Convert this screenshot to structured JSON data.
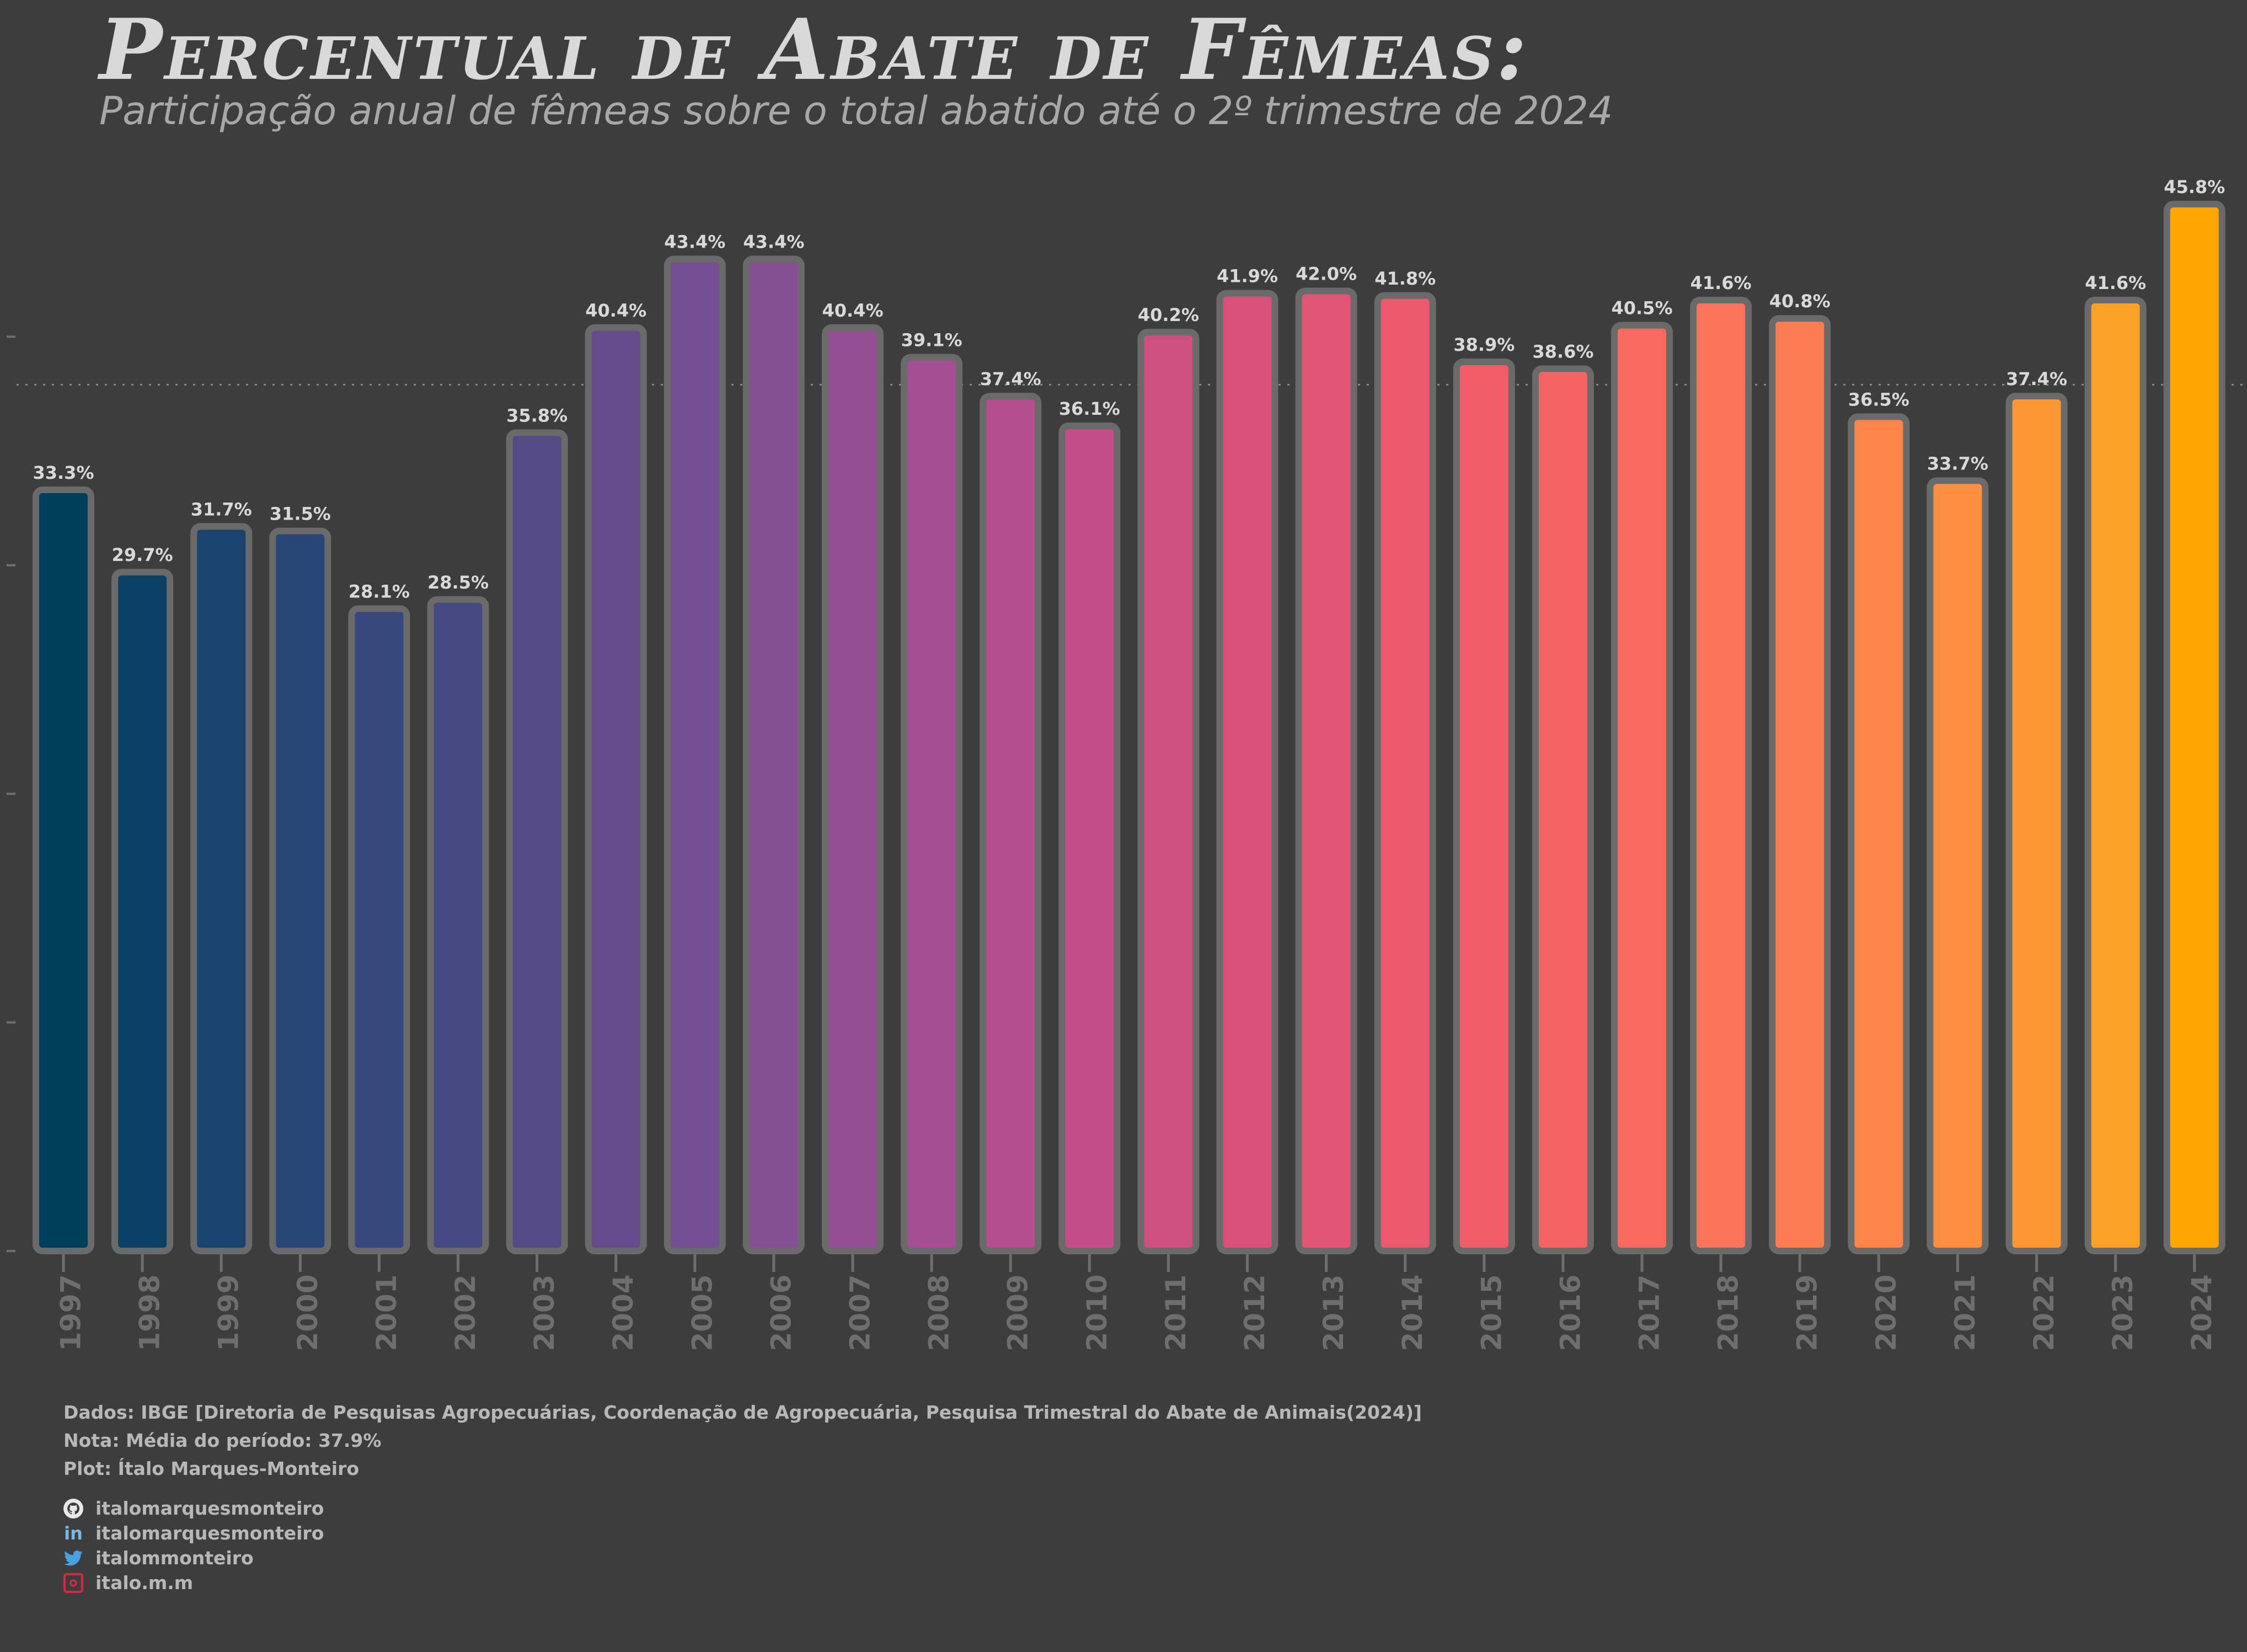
{
  "title": "Percentual de Abate de Fêmeas:",
  "subtitle": "Participação anual de fêmeas sobre o total abatido até o 2º trimestre de 2024",
  "chart_data": {
    "type": "bar",
    "title": "Percentual de Abate de Fêmeas:",
    "subtitle": "Participação anual de fêmeas sobre o total abatido até o 2º trimestre de 2024",
    "categories": [
      "1997",
      "1998",
      "1999",
      "2000",
      "2001",
      "2002",
      "2003",
      "2004",
      "2005",
      "2006",
      "2007",
      "2008",
      "2009",
      "2010",
      "2011",
      "2012",
      "2013",
      "2014",
      "2015",
      "2016",
      "2017",
      "2018",
      "2019",
      "2020",
      "2021",
      "2022",
      "2023",
      "2024"
    ],
    "values": [
      33.3,
      29.7,
      31.7,
      31.5,
      28.1,
      28.5,
      35.8,
      40.4,
      43.4,
      43.4,
      40.4,
      39.1,
      37.4,
      36.1,
      40.2,
      41.9,
      42.0,
      41.8,
      38.9,
      38.6,
      40.5,
      41.6,
      40.8,
      36.5,
      33.7,
      37.4,
      41.6,
      45.8
    ],
    "labels": [
      "33.3%",
      "29.7%",
      "31.7%",
      "31.5%",
      "28.1%",
      "28.5%",
      "35.8%",
      "40.4%",
      "43.4%",
      "43.4%",
      "40.4%",
      "39.1%",
      "37.4%",
      "36.1%",
      "40.2%",
      "41.9%",
      "42.0%",
      "41.8%",
      "38.9%",
      "38.6%",
      "40.5%",
      "41.6%",
      "40.8%",
      "36.5%",
      "33.7%",
      "37.4%",
      "41.6%",
      "45.8%"
    ],
    "colors": [
      "#003f5c",
      "#0c4166",
      "#1a446f",
      "#284677",
      "#36487d",
      "#454a82",
      "#544b86",
      "#634c89",
      "#744f91",
      "#854f93",
      "#944f94",
      "#a44e93",
      "#b44e8e",
      "#c24e88",
      "#ce4f82",
      "#d9517b",
      "#e25574",
      "#ea596d",
      "#f05d68",
      "#f56364",
      "#f86a5f",
      "#fb735a",
      "#fd7d52",
      "#fe854a",
      "#fe8e40",
      "#fd9733",
      "#fca125",
      "#ffa600"
    ],
    "mean": 37.9,
    "ylim": [
      0,
      46
    ],
    "grid": false,
    "reference_line": "dotted line at mean"
  },
  "footer": {
    "line1": "Dados: IBGE [Diretoria de Pesquisas Agropecuárias, Coordenação de Agropecuária, Pesquisa Trimestral do Abate de Animais(2024)]",
    "line2": "Nota: Média do período: 37.9%",
    "line3": "Plot: Ítalo Marques-Monteiro"
  },
  "social": [
    {
      "icon": "github-icon",
      "handle": "italomarquesmonteiro"
    },
    {
      "icon": "linkedin-icon",
      "handle": "italomarquesmonteiro"
    },
    {
      "icon": "twitter-icon",
      "handle": "italommonteiro"
    },
    {
      "icon": "instagram-icon",
      "handle": "italo.m.m"
    }
  ]
}
